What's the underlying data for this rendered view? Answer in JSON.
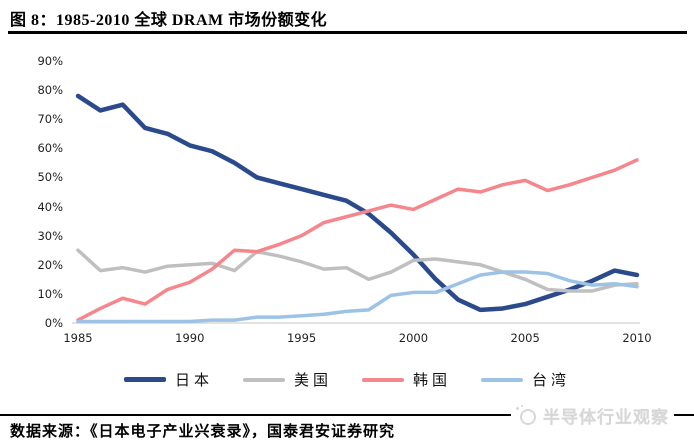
{
  "figure": {
    "title": "图 8：1985-2010 全球 DRAM 市场份额变化",
    "source_note": "数据来源：《日本电子产业兴衰录》，国泰君安证券研究",
    "watermark": {
      "label": "半导体行业观察",
      "icon": "moon-logo-icon"
    }
  },
  "chart_data": {
    "type": "line",
    "title": "1985-2010 全球 DRAM 市场份额变化",
    "x": [
      1985,
      1986,
      1987,
      1988,
      1989,
      1990,
      1991,
      1992,
      1993,
      1994,
      1995,
      1996,
      1997,
      1998,
      1999,
      2000,
      2001,
      2002,
      2003,
      2004,
      2005,
      2006,
      2007,
      2008,
      2009,
      2010
    ],
    "x_tick_labels": [
      "1985",
      "1990",
      "1995",
      "2000",
      "2005",
      "2010"
    ],
    "y_tick_labels": [
      "0%",
      "10%",
      "20%",
      "30%",
      "40%",
      "50%",
      "60%",
      "70%",
      "80%",
      "90%"
    ],
    "ylim": [
      0,
      90
    ],
    "grid": false,
    "legend_position": "bottom",
    "axis_line_color": "#d9d9d9",
    "series": [
      {
        "key": "japan",
        "name": "日本",
        "color": "#2A4A8C",
        "stroke_width": 4.5,
        "values": [
          78,
          73,
          75,
          67,
          65,
          61,
          59,
          55,
          50,
          48,
          46,
          44,
          42,
          37.5,
          31,
          23.5,
          15,
          8,
          4.5,
          5,
          6.5,
          9,
          11.5,
          14.5,
          18,
          16.5
        ]
      },
      {
        "key": "usa",
        "name": "美国",
        "color": "#BFBFBF",
        "stroke_width": 3.5,
        "values": [
          25,
          18,
          19,
          17.5,
          19.5,
          20,
          20.5,
          18,
          24.5,
          23,
          21,
          18.5,
          19,
          15,
          17.5,
          21.5,
          22,
          21,
          20,
          17.5,
          15,
          11.5,
          11,
          11,
          13,
          13.5
        ]
      },
      {
        "key": "korea",
        "name": "韩国",
        "color": "#F4868C",
        "stroke_width": 3.5,
        "values": [
          1,
          5,
          8.5,
          6.5,
          11.5,
          14,
          18.5,
          25,
          24.5,
          27,
          30,
          34.5,
          36.5,
          38.5,
          40.5,
          39,
          42.5,
          46,
          45,
          47.5,
          49,
          45.5,
          47.5,
          50,
          52.5,
          56
        ]
      },
      {
        "key": "taiwan",
        "name": "台湾",
        "color": "#9CC3E6",
        "stroke_width": 3.5,
        "values": [
          0.5,
          0.5,
          0.5,
          0.5,
          0.5,
          0.5,
          1,
          1,
          2,
          2,
          2.5,
          3,
          4,
          4.5,
          9.5,
          10.5,
          10.5,
          13.5,
          16.5,
          17.5,
          17.5,
          17,
          14.5,
          13,
          13.5,
          12.5
        ]
      }
    ]
  }
}
